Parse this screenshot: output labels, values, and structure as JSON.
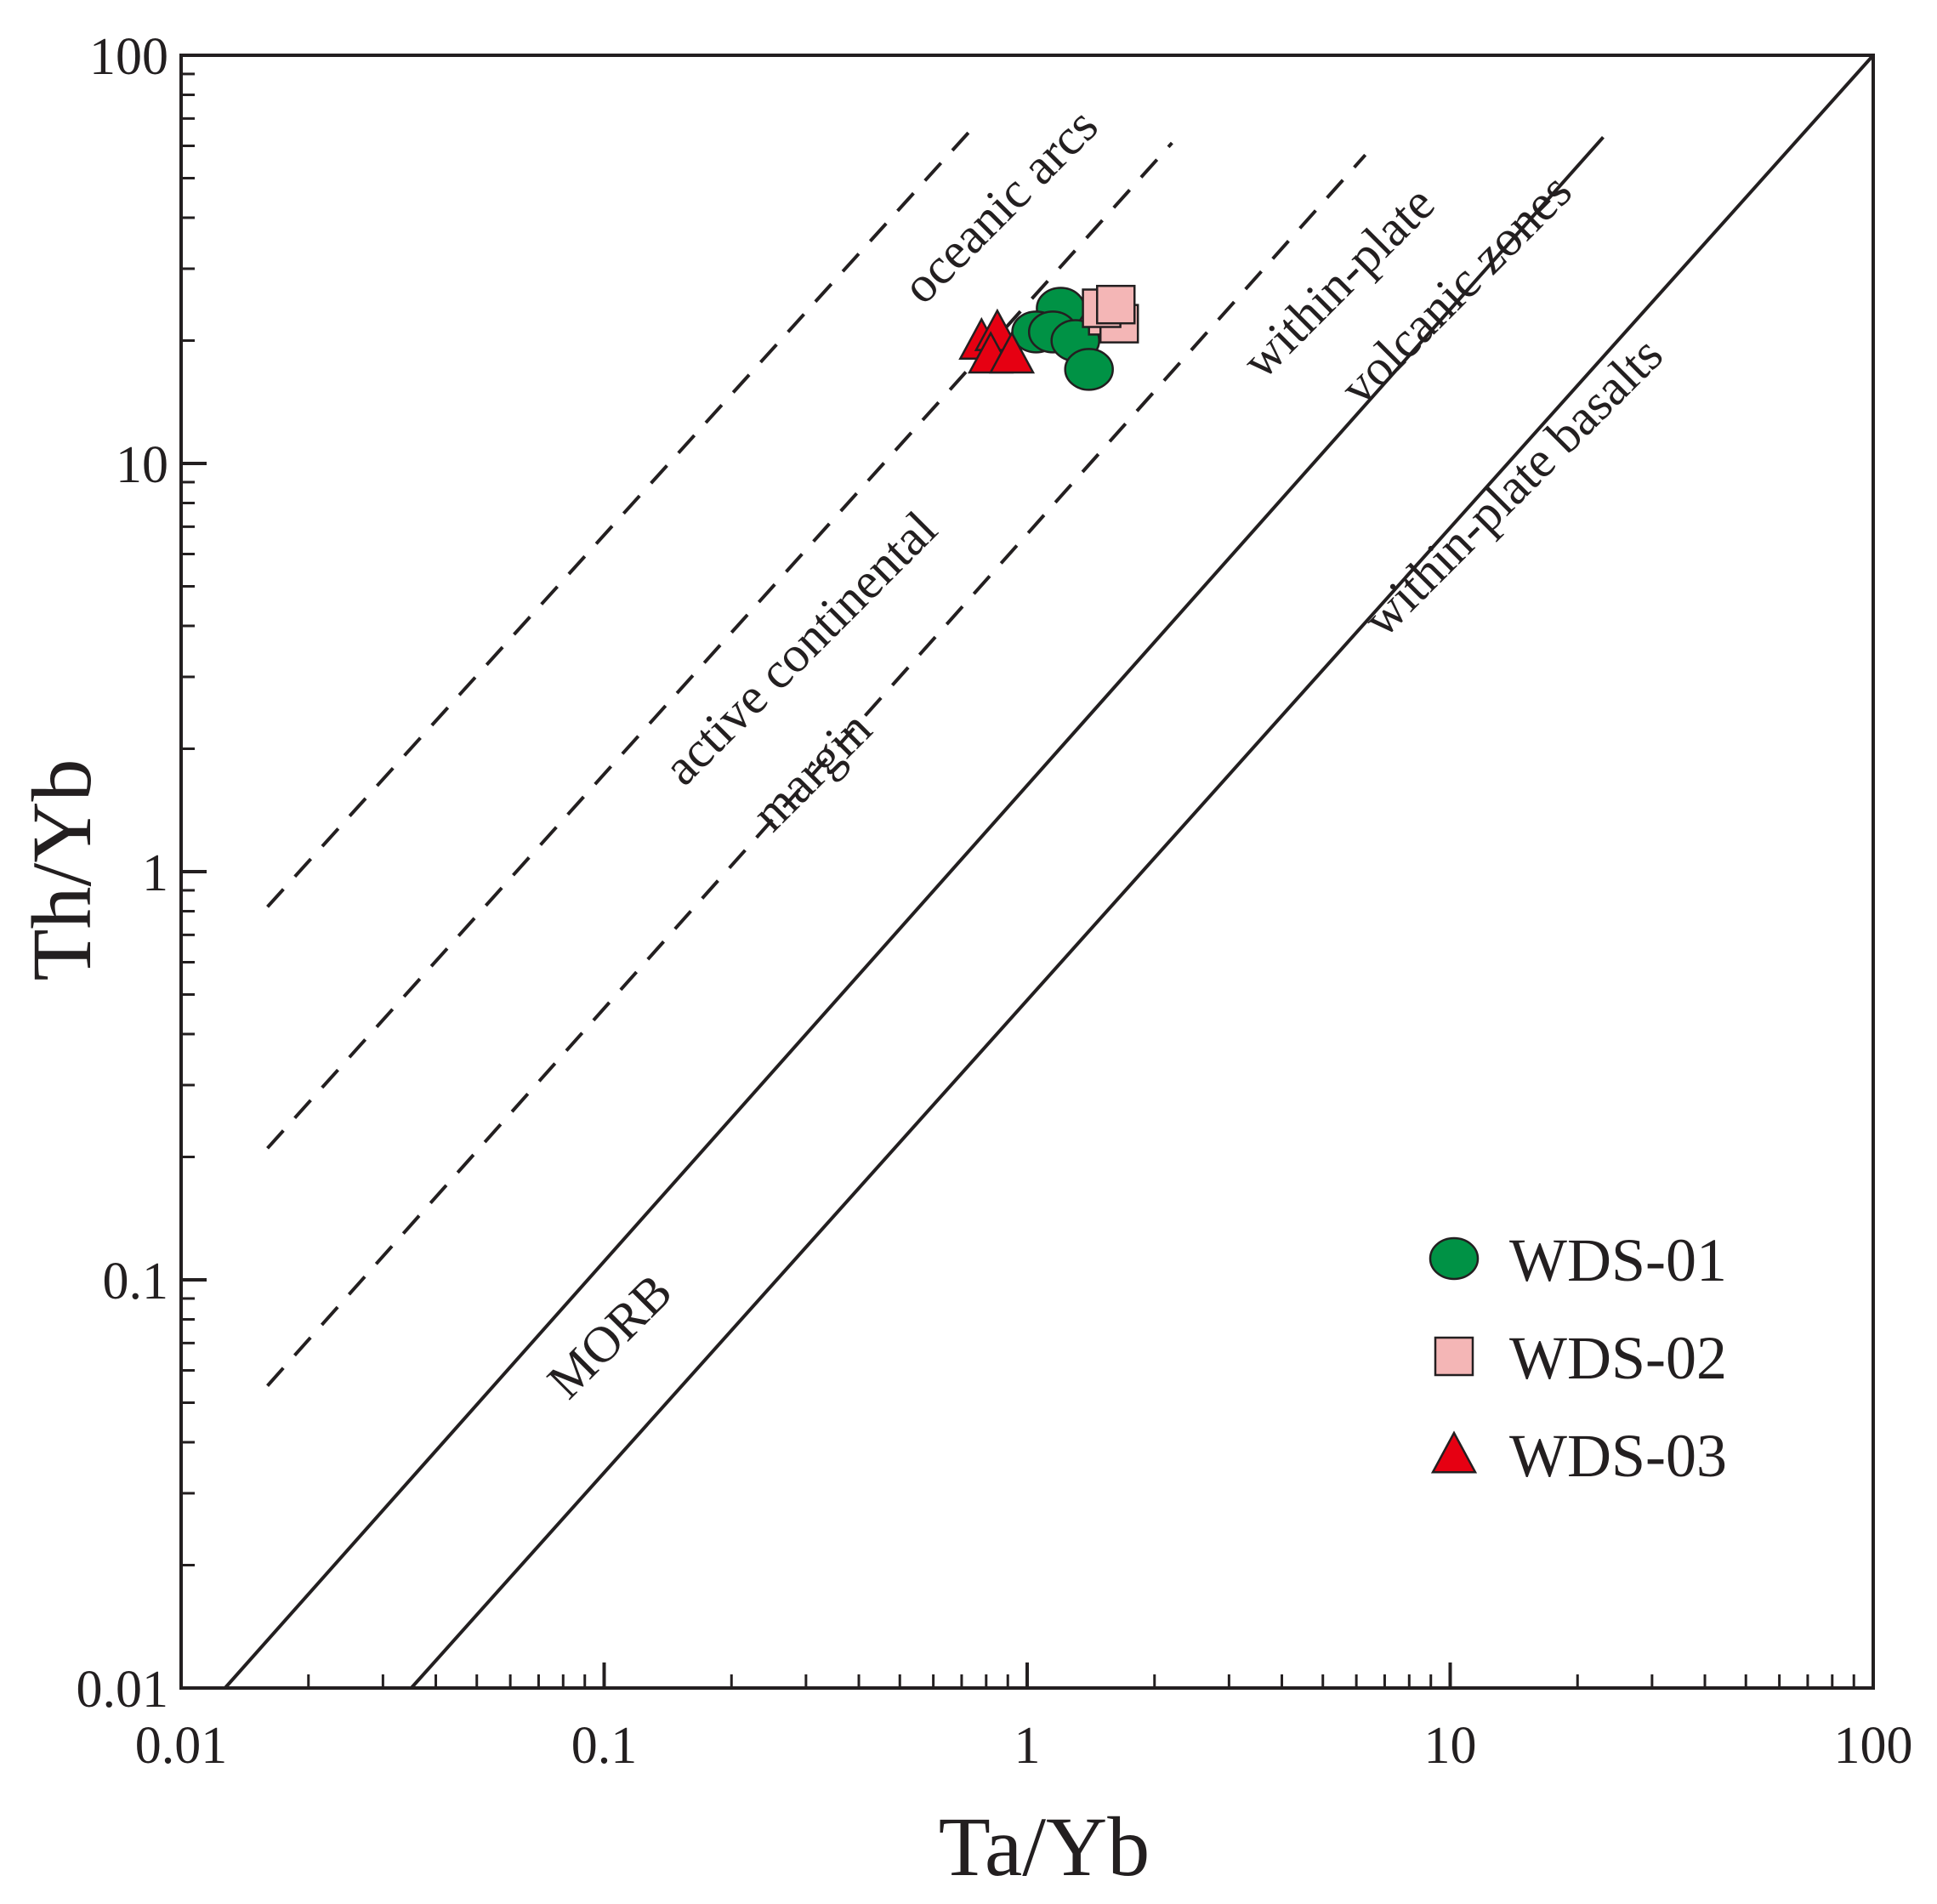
{
  "chart_data": {
    "type": "scatter",
    "title": "",
    "xlabel": "Ta/Yb",
    "ylabel": "Th/Yb",
    "xscale": "log",
    "yscale": "log",
    "xlim": [
      0.01,
      100
    ],
    "ylim": [
      0.01,
      100
    ],
    "x_tick_labels": [
      "0.01",
      "0.1",
      "1",
      "10",
      "100"
    ],
    "y_tick_labels": [
      "0.01",
      "0.1",
      "1",
      "10",
      "100"
    ],
    "grid": false,
    "legend_position": "bottom-right",
    "boundaries": [
      {
        "name": "dashed-1",
        "style": "dashed",
        "from": [
          0.016,
          0.82
        ],
        "to": [
          0.73,
          65
        ]
      },
      {
        "name": "dashed-2",
        "style": "dashed",
        "from": [
          0.016,
          0.21
        ],
        "to": [
          2.2,
          61
        ]
      },
      {
        "name": "dashed-3",
        "style": "dashed",
        "from": [
          0.016,
          0.055
        ],
        "to": [
          6.3,
          57
        ]
      },
      {
        "name": "solid-1",
        "style": "solid",
        "from": [
          0.0127,
          0.01
        ],
        "to": [
          23,
          63
        ]
      },
      {
        "name": "solid-2",
        "style": "solid",
        "from": [
          0.035,
          0.01
        ],
        "to": [
          100,
          100
        ]
      }
    ],
    "field_labels": [
      {
        "text": "oceanic arcs",
        "x": 0.92,
        "y": 40
      },
      {
        "text": "active continental",
        "x": 0.31,
        "y": 3.3
      },
      {
        "text": "margin",
        "x": 0.33,
        "y": 1.65
      },
      {
        "text": "within-plate",
        "x": 5.8,
        "y": 26
      },
      {
        "text": "volcanic zones",
        "x": 11,
        "y": 25
      },
      {
        "text": "within-plate basalts",
        "x": 15,
        "y": 8.2
      },
      {
        "text": "MORB",
        "x": 0.11,
        "y": 0.068
      }
    ],
    "series": [
      {
        "name": "WDS-01",
        "marker": "circle",
        "color": "#009245",
        "points": [
          [
            1.2,
            24
          ],
          [
            1.05,
            21
          ],
          [
            1.15,
            21
          ],
          [
            1.3,
            20
          ],
          [
            1.4,
            17
          ]
        ]
      },
      {
        "name": "WDS-02",
        "marker": "square",
        "color": "#f4b6b6",
        "points": [
          [
            1.55,
            23
          ],
          [
            1.65,
            22
          ],
          [
            1.5,
            24
          ],
          [
            1.62,
            24.5
          ]
        ]
      },
      {
        "name": "WDS-03",
        "marker": "triangle",
        "color": "#e60012",
        "points": [
          [
            0.78,
            20
          ],
          [
            0.85,
            21
          ],
          [
            0.82,
            18.5
          ],
          [
            0.92,
            18.5
          ]
        ]
      }
    ]
  }
}
